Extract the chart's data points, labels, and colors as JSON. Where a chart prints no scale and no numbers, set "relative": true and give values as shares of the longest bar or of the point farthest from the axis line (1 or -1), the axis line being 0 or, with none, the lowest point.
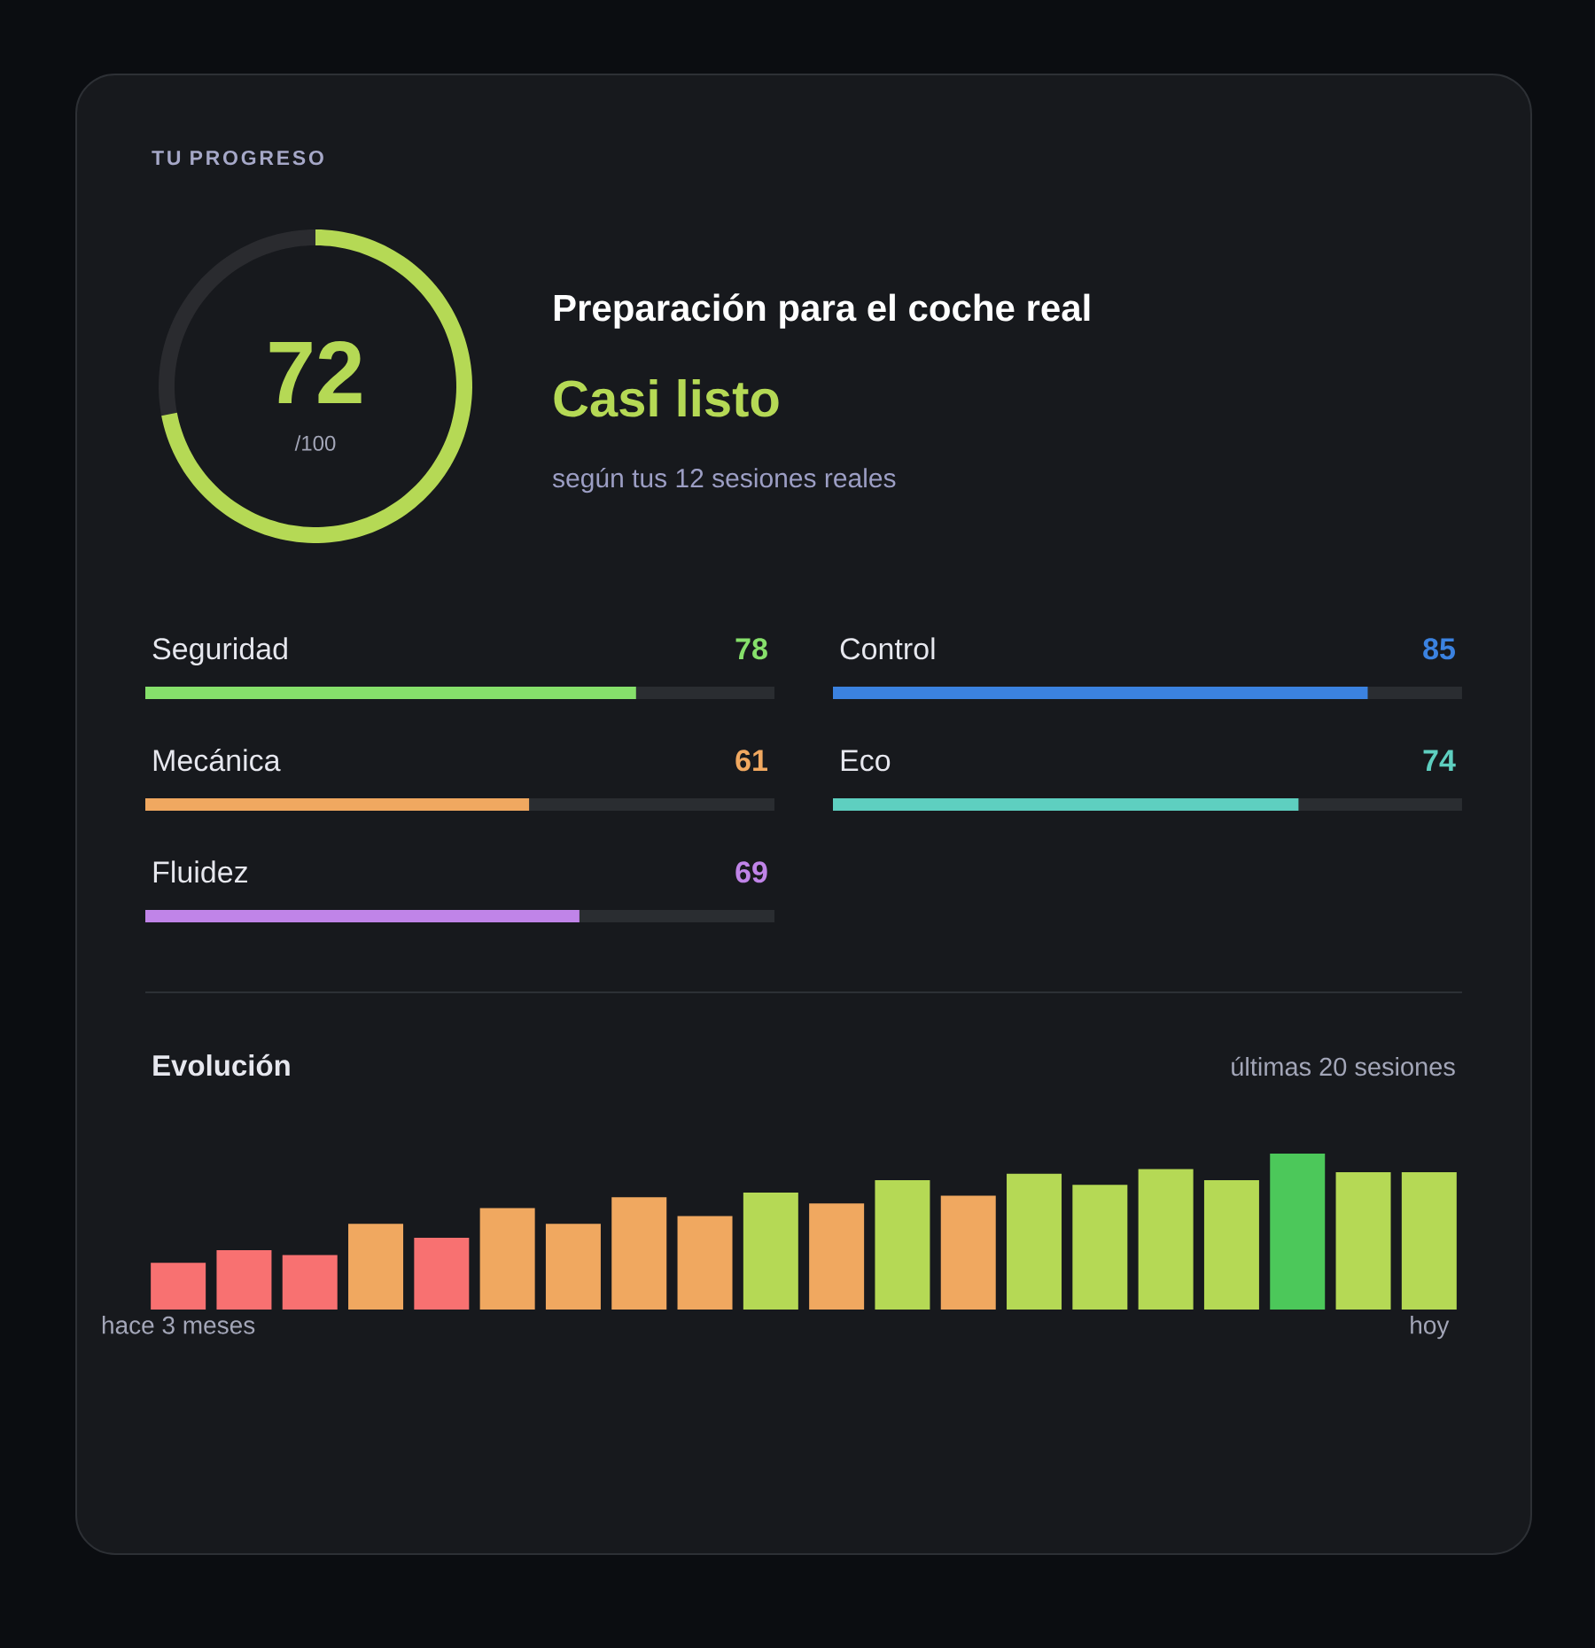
{
  "chart_data": [
    {
      "type": "donut",
      "title": "TU PROGRESO",
      "subtitle": "Preparación para el coche real",
      "categories": [
        null,
        null
      ],
      "values": [
        72,
        28
      ],
      "colors": [
        "#b5d955",
        "#2a2b2f"
      ],
      "annotations": [
        "72",
        "/100",
        "Casi listo",
        "según tus 12 sesiones reales"
      ]
    },
    {
      "type": "bar",
      "orientation": "horizontal",
      "categories": [
        "Seguridad",
        "Mecánica",
        "Fluidez"
      ],
      "values": [
        78,
        61,
        69
      ],
      "colors": [
        "#86e06b",
        "#f0a860",
        "#c084e8"
      ],
      "xlim": [
        0,
        100
      ],
      "data_labels": true,
      "tick_labels": "y"
    },
    {
      "type": "bar",
      "orientation": "horizontal",
      "categories": [
        "Control",
        "Eco"
      ],
      "values": [
        85,
        74
      ],
      "colors": [
        "#3b82e0",
        "#5ecfc0"
      ],
      "xlim": [
        0,
        100
      ],
      "data_labels": true,
      "tick_labels": "y"
    },
    {
      "type": "bar",
      "title": "Evolución",
      "subtitle": "últimas 20 sesiones",
      "relative": true,
      "categories": [
        "hace 3 meses",
        null,
        null,
        null,
        null,
        null,
        null,
        null,
        null,
        null,
        null,
        null,
        null,
        null,
        null,
        null,
        null,
        null,
        null,
        "hoy"
      ],
      "values": [
        0.3,
        0.38,
        0.35,
        0.55,
        0.46,
        0.65,
        0.55,
        0.72,
        0.6,
        0.75,
        0.68,
        0.83,
        0.73,
        0.87,
        0.8,
        0.9,
        0.83,
        1.0,
        0.88,
        0.88
      ],
      "colors": [
        "#f87171",
        "#f87171",
        "#f87171",
        "#f0a860",
        "#f87171",
        "#f0a860",
        "#f0a860",
        "#f0a860",
        "#f0a860",
        "#b5d955",
        "#f0a860",
        "#b5d955",
        "#f0a860",
        "#b5d955",
        "#b5d955",
        "#b5d955",
        "#b5d955",
        "#4cc85a",
        "#b5d955",
        "#b5d955"
      ]
    }
  ]
}
